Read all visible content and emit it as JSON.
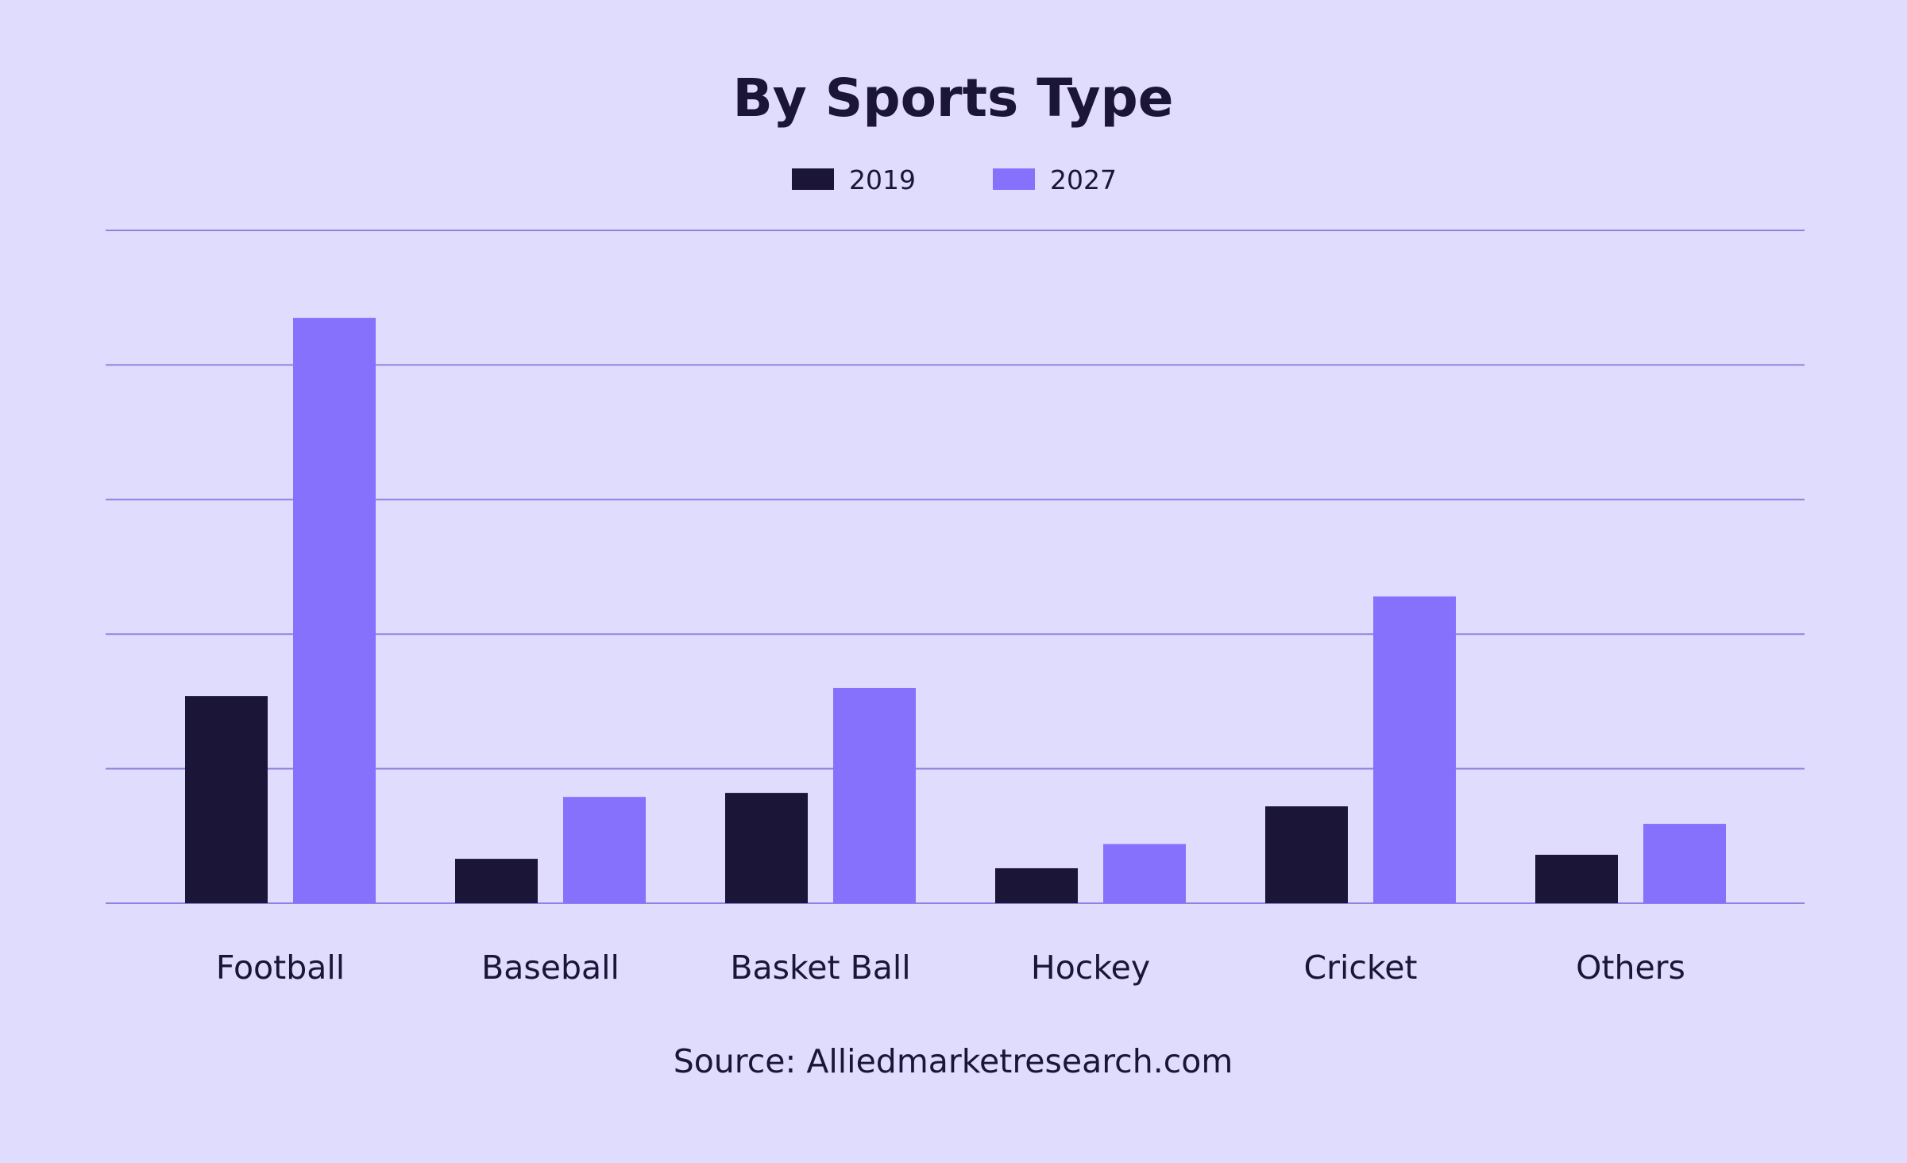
{
  "chart_data": {
    "type": "bar",
    "title": "By Sports Type",
    "source": "Source: Alliedmarketresearch.com",
    "categories": [
      "Football",
      "Baseball",
      "Basket Ball",
      "Hockey",
      "Cricket",
      "Others"
    ],
    "series": [
      {
        "name": "2019",
        "color": "#1b1538",
        "values": [
          1.54,
          0.33,
          0.82,
          0.26,
          0.72,
          0.36
        ]
      },
      {
        "name": "2027",
        "color": "#8671fc",
        "values": [
          4.35,
          0.79,
          1.6,
          0.44,
          2.28,
          0.59
        ]
      }
    ],
    "ylim": [
      0,
      5
    ],
    "yticks": [
      0,
      1,
      2,
      3,
      4,
      5
    ],
    "grid": true,
    "y_tick_labels_visible": false,
    "legend_position": "top-center",
    "xlabel": "",
    "ylabel": ""
  }
}
